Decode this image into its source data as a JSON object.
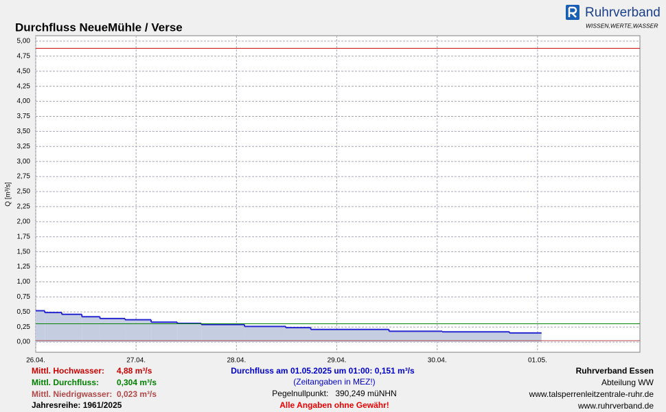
{
  "chart_data": {
    "type": "step-area",
    "title": "Durchfluss NeueMühle / Verse",
    "y_label": "Q [m³/s]",
    "logo": {
      "name": "Ruhrverband",
      "tagline": "WISSEN,WERTE,WASSER"
    },
    "xlim": [
      0,
      6.02
    ],
    "xticks": [
      {
        "value": 0,
        "label": "26.04."
      },
      {
        "value": 1,
        "label": "27.04."
      },
      {
        "value": 2,
        "label": "28.04."
      },
      {
        "value": 3,
        "label": "29.04."
      },
      {
        "value": 4,
        "label": "30.04."
      },
      {
        "value": 5,
        "label": "01.05."
      }
    ],
    "ylim": [
      -0.17,
      5.09
    ],
    "yticks": [
      {
        "value": 0,
        "label": "0,00"
      },
      {
        "value": 0.25,
        "label": "0,25"
      },
      {
        "value": 0.5,
        "label": "0,50"
      },
      {
        "value": 0.75,
        "label": "0,75"
      },
      {
        "value": 1,
        "label": "1,00"
      },
      {
        "value": 1.25,
        "label": "1,25"
      },
      {
        "value": 1.5,
        "label": "1,50"
      },
      {
        "value": 1.75,
        "label": "1,75"
      },
      {
        "value": 2,
        "label": "2,00"
      },
      {
        "value": 2.25,
        "label": "2,25"
      },
      {
        "value": 2.5,
        "label": "2,50"
      },
      {
        "value": 2.75,
        "label": "2,75"
      },
      {
        "value": 3,
        "label": "3,00"
      },
      {
        "value": 3.25,
        "label": "3,25"
      },
      {
        "value": 3.5,
        "label": "3,50"
      },
      {
        "value": 3.75,
        "label": "3,75"
      },
      {
        "value": 4,
        "label": "4,00"
      },
      {
        "value": 4.25,
        "label": "4,25"
      },
      {
        "value": 4.5,
        "label": "4,50"
      },
      {
        "value": 4.75,
        "label": "4,75"
      },
      {
        "value": 5,
        "label": "5,00"
      }
    ],
    "grid": true,
    "color": "#2626d0",
    "fill": "#c5cde0",
    "x": [
      0,
      0.09,
      0.26,
      0.46,
      0.64,
      0.89,
      1.15,
      1.41,
      1.65,
      2.08,
      2.49,
      2.74,
      3.52,
      4.05,
      4.72,
      5.04
    ],
    "values": [
      0.52,
      0.49,
      0.46,
      0.42,
      0.39,
      0.37,
      0.33,
      0.31,
      0.29,
      0.26,
      0.24,
      0.21,
      0.18,
      0.17,
      0.151,
      0.151
    ],
    "reference_lines": [
      {
        "name": "Mittl. Hochwasser:",
        "value": 4.88,
        "label": "4,88 m³/s",
        "color": "#cc0000"
      },
      {
        "name": "Mittl. Durchfluss:",
        "value": 0.304,
        "label": "0,304 m³/s",
        "color": "#008000"
      },
      {
        "name": "Mittl. Niedrigwasser:",
        "value": 0.023,
        "label": "0,023 m³/s",
        "color": "#b04848"
      }
    ],
    "series_years": "Jahresreihe: 1961/2025",
    "current": "Durchfluss am 01.05.2025 um 01:00: 0,151 m³/s",
    "time_note": "(Zeitangaben in MEZ!)",
    "gauge_zero": "Pegelnullpunkt:   390,249 müNHN",
    "disclaimer": "Alle Angaben ohne Gewähr!",
    "publisher": [
      "Ruhrverband Essen",
      "Abteilung WW",
      "www.talsperrenleitzentrale-ruhr.de",
      "www.ruhrverband.de"
    ]
  }
}
